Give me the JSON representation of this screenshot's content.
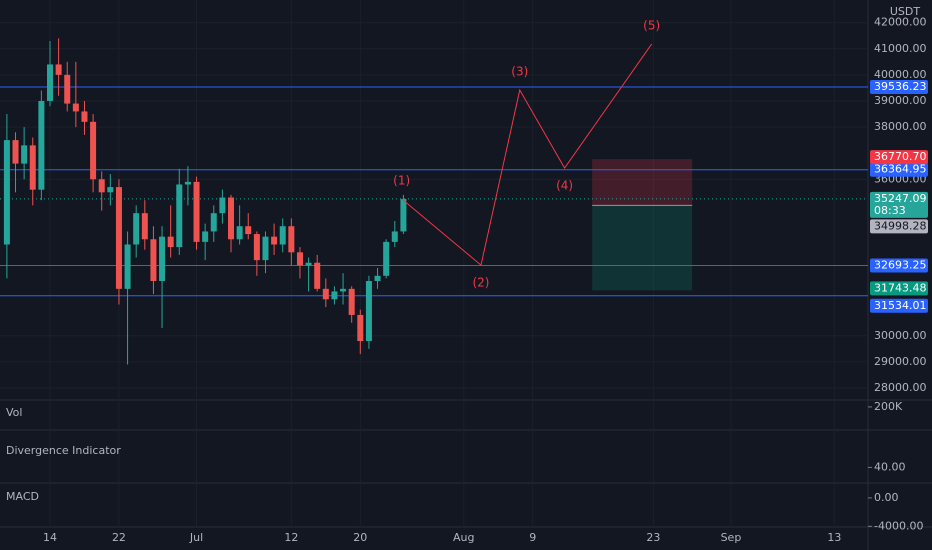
{
  "chart_data": {
    "type": "candlestick",
    "currency": "USDT",
    "x": [
      0,
      1,
      2,
      3,
      4,
      5,
      6,
      7,
      8,
      9,
      10,
      11,
      12,
      13,
      14,
      15,
      16,
      17,
      18,
      19,
      20,
      21,
      22,
      23,
      24,
      25,
      26,
      27,
      28,
      29,
      30,
      31,
      32,
      33,
      34,
      35,
      36,
      37,
      38,
      39,
      40,
      41,
      42,
      43,
      44,
      45,
      46
    ],
    "open": [
      33500,
      37500,
      36600,
      37300,
      35600,
      39000,
      40400,
      40000,
      38900,
      38600,
      38200,
      36000,
      35500,
      35700,
      31800,
      33500,
      34700,
      33700,
      32100,
      33800,
      33400,
      35800,
      35900,
      33600,
      34000,
      34700,
      35300,
      33700,
      34200,
      33900,
      32900,
      33800,
      33500,
      34200,
      33200,
      32700,
      32800,
      31800,
      31400,
      31700,
      31800,
      30800,
      29800,
      32100,
      32300,
      33600,
      34000
    ],
    "high": [
      38500,
      37800,
      38000,
      37600,
      39400,
      41300,
      41400,
      40500,
      40500,
      39000,
      38500,
      36300,
      36200,
      36000,
      34000,
      35000,
      35200,
      34200,
      34200,
      35000,
      36400,
      36500,
      36100,
      34300,
      35000,
      35600,
      35400,
      35000,
      34700,
      34000,
      34000,
      34300,
      34500,
      34500,
      33400,
      33000,
      33100,
      32200,
      31900,
      32400,
      31900,
      31000,
      32300,
      32600,
      33700,
      34400,
      35400
    ],
    "low": [
      32200,
      35500,
      36000,
      35000,
      35200,
      38800,
      39200,
      38600,
      38000,
      37700,
      35500,
      34800,
      35000,
      31200,
      28900,
      33000,
      33300,
      31600,
      30300,
      33000,
      33100,
      35000,
      33300,
      32900,
      33600,
      34300,
      33200,
      33500,
      33700,
      32300,
      32400,
      33100,
      33200,
      32700,
      32200,
      31700,
      31700,
      31100,
      31200,
      31200,
      30500,
      29300,
      29500,
      31800,
      32200,
      33400,
      33900
    ],
    "close": [
      37500,
      36600,
      37300,
      35600,
      39000,
      40400,
      40000,
      38900,
      38600,
      38200,
      36000,
      35500,
      35700,
      31800,
      33500,
      34700,
      33700,
      32100,
      33800,
      33400,
      35800,
      35900,
      33600,
      34000,
      34700,
      35300,
      33700,
      34200,
      33900,
      32900,
      33800,
      33500,
      34200,
      33200,
      32700,
      32800,
      31800,
      31400,
      31700,
      31800,
      30800,
      29800,
      32100,
      32300,
      33600,
      34000,
      35247.09
    ],
    "up_color": "#26a69a",
    "down_color": "#ef5350",
    "xlim": [
      -0.8,
      99.9
    ],
    "xticks": [
      {
        "value": 5,
        "label": "14"
      },
      {
        "value": 13,
        "label": "22"
      },
      {
        "value": 22,
        "label": "Jul"
      },
      {
        "value": 33,
        "label": "12"
      },
      {
        "value": 41,
        "label": "20"
      },
      {
        "value": 53,
        "label": "Aug"
      },
      {
        "value": 61,
        "label": "9"
      },
      {
        "value": 75,
        "label": "23"
      },
      {
        "value": 84,
        "label": "Sep"
      },
      {
        "value": 96,
        "label": "13"
      }
    ],
    "ylim": [
      27540,
      42870
    ],
    "yticks": [
      {
        "value": 42000,
        "label": "42000.00"
      },
      {
        "value": 41000,
        "label": "41000.00"
      },
      {
        "value": 40000,
        "label": "40000.00"
      },
      {
        "value": 39000,
        "label": "39000.00"
      },
      {
        "value": 38000,
        "label": "38000.00"
      },
      {
        "value": 36000,
        "label": "36000.00"
      },
      {
        "value": 30000,
        "label": "30000.00"
      },
      {
        "value": 29000,
        "label": "29000.00"
      },
      {
        "value": 28000,
        "label": "28000.00"
      }
    ],
    "hlines": [
      39536.23,
      36364.95,
      32693.25,
      31534.01
    ],
    "hline_color": "#2962ff",
    "last_price": 35247.09,
    "countdown": "08:33",
    "position": {
      "x": [
        67.9,
        79.5
      ],
      "stop": {
        "value": 36770.7,
        "label": "36770.70"
      },
      "entry": 34998.28,
      "target": 31743.48
    },
    "wave": [
      {
        "label": "(1)",
        "x": 45.8,
        "y": 35247
      },
      {
        "label": "(2)",
        "x": 55,
        "y": 32710
      },
      {
        "label": "(3)",
        "x": 59.5,
        "y": 39420
      },
      {
        "label": "(4)",
        "x": 64.7,
        "y": 36430
      },
      {
        "label": "(5)",
        "x": 74.8,
        "y": 41180
      }
    ],
    "wave_color": "#f23645",
    "panes": [
      {
        "title": "Vol",
        "ylim": [
          0,
          260000
        ],
        "tick": {
          "value": 200000,
          "label": "200K"
        }
      },
      {
        "title": "Divergence Indicator",
        "ylim": [
          15,
          100
        ],
        "tick": {
          "value": 40,
          "label": "40.00"
        }
      },
      {
        "title": "MACD",
        "ylim": [
          -4100,
          2100
        ],
        "tick": {
          "value": 0,
          "label": "0.00"
        },
        "tick2": {
          "value": -4000,
          "label": "-4000.00"
        }
      }
    ]
  }
}
